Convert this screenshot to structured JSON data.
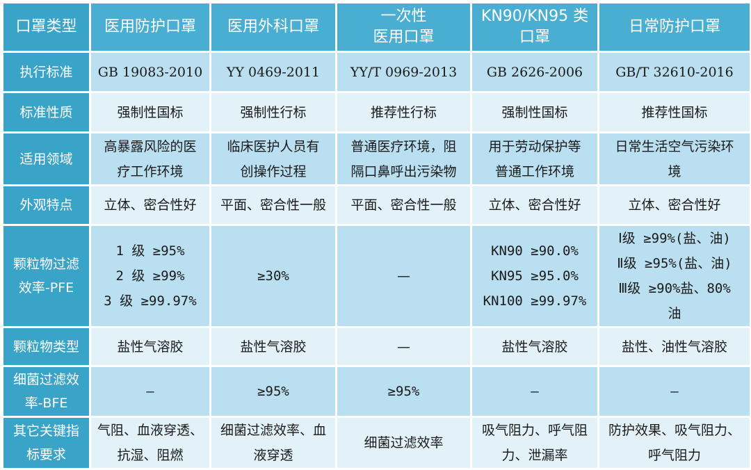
{
  "columns": [
    "口罩类型",
    "医用防护口罩",
    "医用外科口罩",
    "一次性\n医用口罩",
    "KN90/KN95 类\n口罩",
    "日常防护口罩"
  ],
  "rows": {
    "standard": {
      "label": "执行标准",
      "cells": [
        "GB 19083-2010",
        "YY 0469-2011",
        "YY/T 0969-2013",
        "GB 2626-2006",
        "GB/T 32610-2016"
      ]
    },
    "nature": {
      "label": "标准性质",
      "cells": [
        "强制性国标",
        "强制性行标",
        "推荐性行标",
        "强制性国标",
        "推荐性国标"
      ]
    },
    "scope": {
      "label": "适用领域",
      "cells": [
        [
          "高暴露风险的医",
          "疗工作环境"
        ],
        [
          "临床医护人员有",
          "创操作过程"
        ],
        [
          "普通医疗环境，阻",
          "隔口鼻呼出污染物"
        ],
        [
          "用于劳动保护等",
          "普通工作环境"
        ],
        [
          "日常生活空气污染环",
          "境"
        ]
      ]
    },
    "appearance": {
      "label": "外观特点",
      "cells": [
        "立体、密合性好",
        "平面、密合性一般",
        "平面、密合性一般",
        "立体、密合性好",
        "立体、密合性好"
      ]
    },
    "pfe": {
      "label": [
        "颗粒物过滤",
        "效率-PFE"
      ],
      "cells": [
        [
          "1 级 ≥95%",
          "2 级 ≥99%",
          "3 级 ≥99.97%"
        ],
        [
          "≥30%"
        ],
        [
          "—"
        ],
        [
          "KN90 ≥90.0%",
          "KN95 ≥95.0%",
          "KN100 ≥99.97%"
        ],
        [
          "Ⅰ级 ≥99%(盐、油)",
          "Ⅱ级 ≥95%(盐、油)",
          "Ⅲ级 ≥90%盐、80%",
          "油"
        ]
      ]
    },
    "particle_type": {
      "label": "颗粒物类型",
      "cells": [
        "盐性气溶胶",
        "盐性气溶胶",
        "—",
        "盐性气溶胶",
        "盐性、油性气溶胶"
      ]
    },
    "bfe": {
      "label": [
        "细菌过滤效",
        "率-BFE"
      ],
      "cells": [
        "—",
        "≥95%",
        "≥95%",
        "—",
        "—"
      ]
    },
    "other": {
      "label": [
        "其它关键指",
        "标要求"
      ],
      "cells": [
        [
          "气阻、血液穿透、",
          "抗湿、阻燃"
        ],
        [
          "细菌过滤效率、血",
          "液穿透"
        ],
        [
          "细菌过滤效率"
        ],
        [
          "吸气阻力、呼气阻",
          "力、泄漏率"
        ],
        [
          "防护效果、吸气阻力、",
          "呼气阻力"
        ]
      ]
    }
  },
  "colors": {
    "header_bg": "#49aed1",
    "row_label_bg": "#3aa3c8",
    "row_blue_bg": "#b9dff0",
    "row_light_bg": "#e3f2f9",
    "border": "#ffffff"
  }
}
